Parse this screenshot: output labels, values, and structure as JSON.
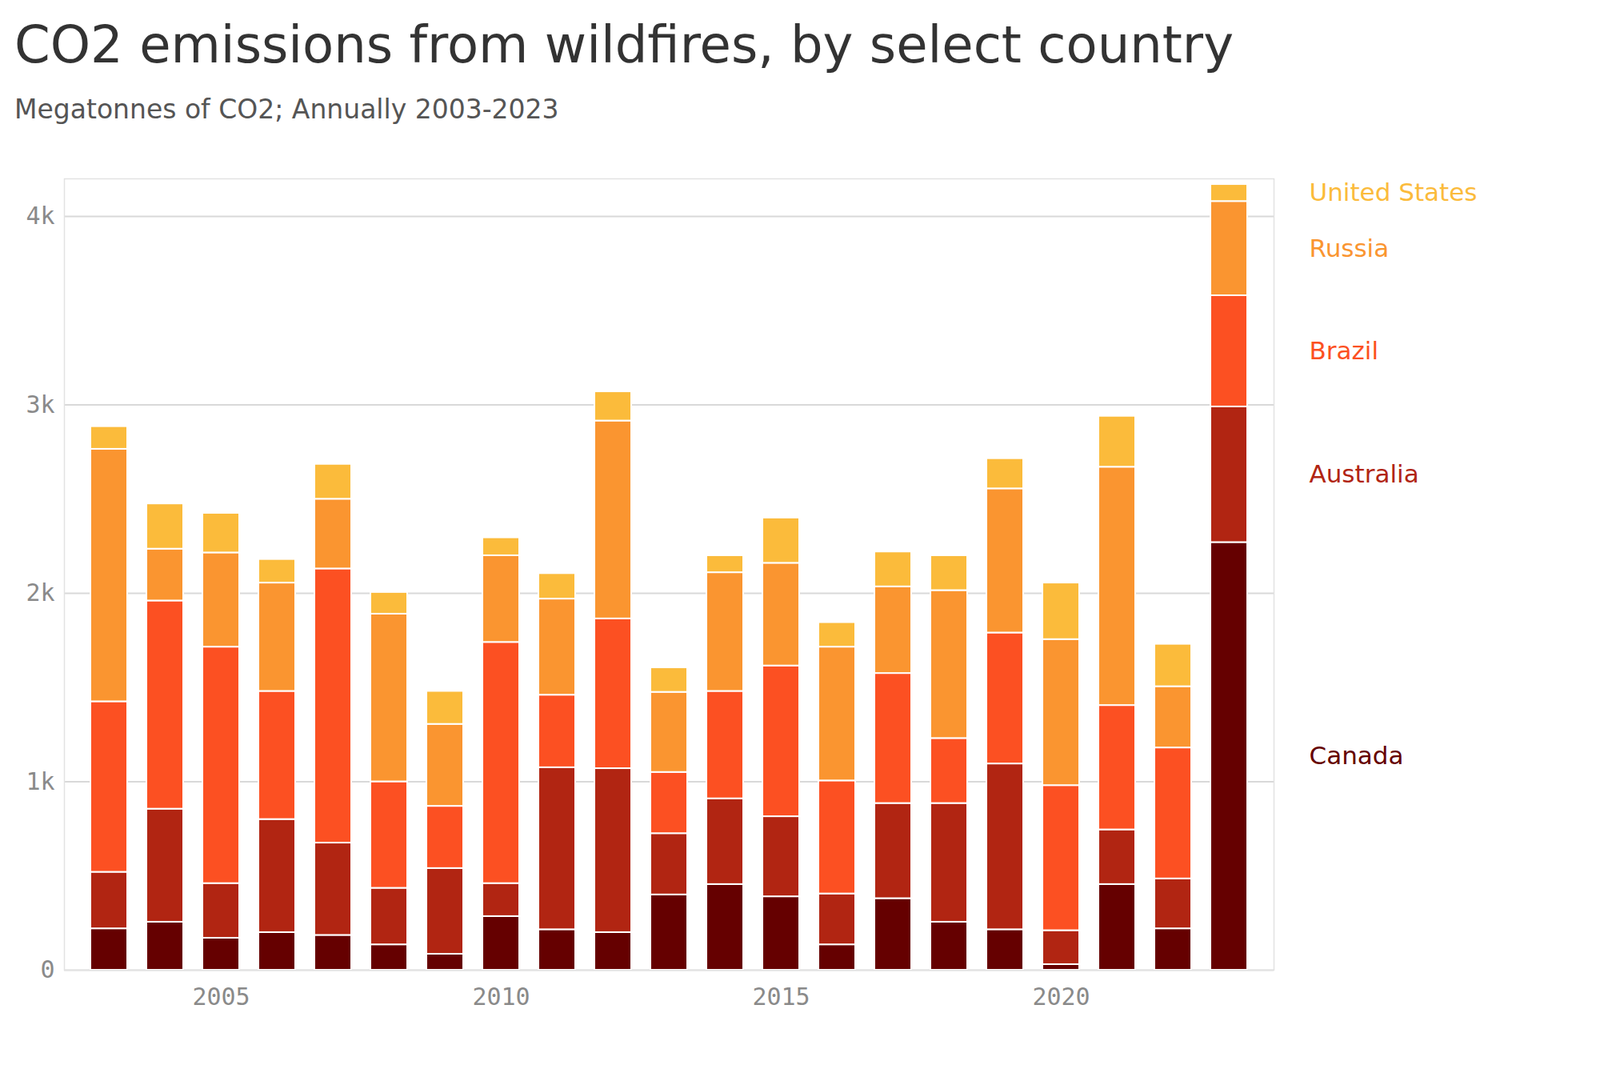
{
  "chart_data": {
    "type": "bar",
    "title": "CO2 emissions from wildfires, by select country",
    "subtitle": "Megatonnes of CO2; Annually 2003-2023",
    "stacked": true,
    "grid": true,
    "legend": "right",
    "x": [
      2003,
      2004,
      2005,
      2006,
      2007,
      2008,
      2009,
      2010,
      2011,
      2012,
      2013,
      2014,
      2015,
      2016,
      2017,
      2018,
      2019,
      2020,
      2021,
      2022,
      2023
    ],
    "xticks": [
      2005,
      2010,
      2015,
      2020
    ],
    "ylim": [
      0,
      4200
    ],
    "yticks": [
      0,
      {
        "value": 1000,
        "label": "1k"
      },
      {
        "value": 2000,
        "label": "2k"
      },
      {
        "value": 3000,
        "label": "3k"
      },
      {
        "value": 4000,
        "label": "4k"
      }
    ],
    "series": [
      {
        "name": "Canada",
        "color": "#650000",
        "values": [
          220,
          255,
          170,
          200,
          185,
          135,
          85,
          285,
          215,
          200,
          400,
          455,
          390,
          135,
          380,
          255,
          215,
          30,
          455,
          220,
          2270
        ]
      },
      {
        "name": "Australia",
        "color": "#b12512",
        "values": [
          300,
          600,
          290,
          600,
          490,
          300,
          455,
          175,
          860,
          870,
          325,
          455,
          425,
          270,
          505,
          630,
          880,
          180,
          290,
          265,
          720
        ]
      },
      {
        "name": "Brazil",
        "color": "#fc5022",
        "values": [
          905,
          1105,
          1255,
          680,
          1455,
          565,
          330,
          1280,
          385,
          795,
          325,
          570,
          800,
          600,
          690,
          345,
          695,
          770,
          660,
          695,
          590
        ]
      },
      {
        "name": "Russia",
        "color": "#fa9530",
        "values": [
          1340,
          275,
          500,
          575,
          370,
          890,
          435,
          460,
          510,
          1050,
          425,
          630,
          545,
          710,
          460,
          785,
          765,
          775,
          1265,
          325,
          500
        ]
      },
      {
        "name": "United States",
        "color": "#fbbb3b",
        "values": [
          120,
          240,
          210,
          125,
          185,
          115,
          175,
          95,
          135,
          155,
          130,
          90,
          240,
          130,
          185,
          185,
          160,
          300,
          270,
          225,
          90
        ]
      }
    ]
  }
}
